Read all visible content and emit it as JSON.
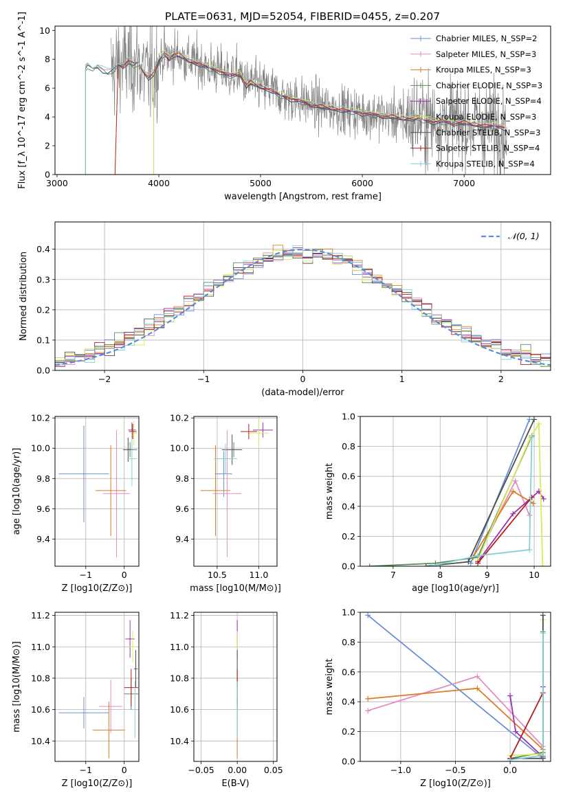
{
  "figure_title": "PLATE=0631, MJD=52054, FIBERID=0455, z=0.207",
  "colors": {
    "series": [
      "#6a8fd6",
      "#e38ac0",
      "#db7b26",
      "#5a8a5a",
      "#9b2fae",
      "#d8ec5a",
      "#4d4d4d",
      "#b71c1c",
      "#84cfd6"
    ],
    "data_spectrum": "#808080",
    "grid": "#b0b0b0",
    "normal_curve": "#5b8bd6"
  },
  "chart_data": [
    {
      "id": "spectrum",
      "type": "line",
      "title": "PLATE=0631, MJD=52054, FIBERID=0455, z=0.207",
      "xlabel": "wavelength [Angstrom, rest frame]",
      "ylabel": "Flux [f_λ 10^-17 erg cm^-2 s^-1 A^-1]",
      "xlim": [
        2980,
        7850
      ],
      "ylim": [
        0,
        10.3
      ],
      "xticks": [
        3000,
        4000,
        5000,
        6000,
        7000
      ],
      "yticks": [
        0,
        2,
        4,
        6,
        8,
        10
      ],
      "grid": false,
      "legend_position": "upper right",
      "legend": [
        "Chabrier MILES, N_SSP=2",
        "Salpeter MILES, N_SSP=3",
        "Kroupa MILES, N_SSP=3",
        "Chabrier ELODIE, N_SSP=3",
        "Salpeter ELODIE, N_SSP=4",
        "Kroupa ELODIE, N_SSP=3",
        "Chabrier STELIB, N_SSP=3",
        "Salpeter STELIB, N_SSP=4",
        "Kroupa STELIB, N_SSP=4"
      ],
      "model_continuum": {
        "x": [
          3280,
          3300,
          3350,
          3400,
          3450,
          3500,
          3550,
          3600,
          3650,
          3700,
          3750,
          3800,
          3850,
          3900,
          3950,
          4000,
          4050,
          4100,
          4150,
          4200,
          4300,
          4400,
          4500,
          4600,
          4700,
          4800,
          4862,
          4900,
          5000,
          5100,
          5200,
          5300,
          5400,
          5500,
          5600,
          5700,
          5800,
          5900,
          6000,
          6100,
          6200,
          6300,
          6400,
          6500,
          6563,
          6600,
          6700,
          6800,
          6900,
          7000,
          7100,
          7200,
          7300,
          7400
        ],
        "y": [
          7.4,
          7.6,
          7.4,
          7.6,
          7.3,
          7.1,
          7.3,
          7.7,
          7.6,
          7.9,
          7.6,
          7.8,
          7.2,
          6.8,
          7.0,
          7.9,
          8.4,
          8.1,
          8.4,
          8.3,
          7.9,
          7.7,
          7.4,
          7.2,
          6.9,
          7.0,
          6.2,
          6.4,
          6.1,
          5.9,
          5.5,
          5.3,
          5.1,
          4.9,
          4.7,
          4.6,
          4.5,
          4.4,
          4.3,
          4.2,
          4.1,
          4.0,
          3.9,
          3.9,
          4.0,
          3.8,
          3.7,
          3.7,
          3.6,
          3.6,
          3.5,
          3.4,
          3.4,
          3.3
        ]
      },
      "model_starts": [
        3280,
        3280,
        3570,
        3280,
        3950,
        3950,
        3280,
        3570,
        3280
      ]
    },
    {
      "id": "residuals",
      "type": "line",
      "xlabel": "(data-model)/error",
      "ylabel": "Normed distribution",
      "xlim": [
        -2.5,
        2.5
      ],
      "ylim": [
        0,
        0.49
      ],
      "xticks": [
        -2,
        -1,
        0,
        1,
        2
      ],
      "yticks": [
        0.0,
        0.1,
        0.2,
        0.3,
        0.4
      ],
      "grid": true,
      "legend_position": "upper right",
      "legend": [
        "𝒩(0, 1)"
      ],
      "normal": {
        "mean": 0,
        "std": 1
      }
    },
    {
      "id": "age-vs-Z",
      "type": "scatter",
      "xlabel": "Z [log10(Z/Z⊙)]",
      "ylabel": "age [log10(age/yr)]",
      "xlim": [
        -1.8,
        0.38
      ],
      "ylim": [
        9.22,
        10.21
      ],
      "xticks": [
        -1,
        0
      ],
      "yticks": [
        9.4,
        9.6,
        9.8,
        10.0,
        10.2
      ],
      "grid": true,
      "points": [
        {
          "x": -1.05,
          "y": 9.83,
          "xerr": 0.65,
          "yerr": 0.32
        },
        {
          "x": -0.2,
          "y": 9.7,
          "xerr": 0.35,
          "yerr": 0.42
        },
        {
          "x": -0.35,
          "y": 9.72,
          "xerr": 0.4,
          "yerr": 0.3
        },
        {
          "x": 0.15,
          "y": 9.99,
          "xerr": 0.18,
          "yerr": 0.05
        },
        {
          "x": 0.2,
          "y": 10.12,
          "xerr": 0.1,
          "yerr": 0.05
        },
        {
          "x": 0.25,
          "y": 10.1,
          "xerr": 0.08,
          "yerr": 0.08
        },
        {
          "x": 0.1,
          "y": 9.99,
          "xerr": 0.12,
          "yerr": 0.08
        },
        {
          "x": 0.22,
          "y": 10.11,
          "xerr": 0.1,
          "yerr": 0.05
        },
        {
          "x": 0.2,
          "y": 9.93,
          "xerr": 0.12,
          "yerr": 0.18
        }
      ]
    },
    {
      "id": "age-vs-mass",
      "type": "scatter",
      "xlabel": "mass [log10(M/M⊙)]",
      "ylabel": "",
      "xlim": [
        10.22,
        11.22
      ],
      "ylim": [
        9.22,
        10.21
      ],
      "xticks": [
        10.5,
        11.0
      ],
      "yticks": [
        9.4,
        9.6,
        9.8,
        10.0,
        10.2
      ],
      "grid": true,
      "points": [
        {
          "x": 10.58,
          "y": 9.83,
          "xerr": 0.1,
          "yerr": 0.15
        },
        {
          "x": 10.62,
          "y": 9.7,
          "xerr": 0.17,
          "yerr": 0.42
        },
        {
          "x": 10.48,
          "y": 9.72,
          "xerr": 0.18,
          "yerr": 0.3
        },
        {
          "x": 10.7,
          "y": 9.99,
          "xerr": 0.1,
          "yerr": 0.05
        },
        {
          "x": 11.05,
          "y": 10.12,
          "xerr": 0.12,
          "yerr": 0.05
        },
        {
          "x": 11.0,
          "y": 10.1,
          "xerr": 0.12,
          "yerr": 0.1
        },
        {
          "x": 10.68,
          "y": 9.99,
          "xerr": 0.12,
          "yerr": 0.1
        },
        {
          "x": 10.88,
          "y": 10.11,
          "xerr": 0.1,
          "yerr": 0.05
        },
        {
          "x": 10.6,
          "y": 9.93,
          "xerr": 0.14,
          "yerr": 0.1
        }
      ]
    },
    {
      "id": "massweight-vs-age",
      "type": "line",
      "xlabel": "age [log10(age/yr)]",
      "ylabel": "mass weight",
      "xlim": [
        6.3,
        10.35
      ],
      "ylim": [
        0,
        1.0
      ],
      "xticks": [
        7,
        8,
        9,
        10
      ],
      "yticks": [
        0.0,
        0.2,
        0.4,
        0.6,
        0.8,
        1.0
      ],
      "grid": true,
      "series": [
        {
          "x": [
            8.65,
            9.9
          ],
          "y": [
            0.02,
            0.98
          ]
        },
        {
          "x": [
            8.8,
            9.6,
            9.9
          ],
          "y": [
            0.06,
            0.57,
            0.34
          ]
        },
        {
          "x": [
            8.7,
            9.55,
            9.98
          ],
          "y": [
            0.06,
            0.5,
            0.42
          ]
        },
        {
          "x": [
            6.5,
            7.9,
            8.8,
            9.95
          ],
          "y": [
            0.0,
            0.02,
            0.06,
            0.87
          ]
        },
        {
          "x": [
            8.8,
            9.55,
            10.1,
            10.2
          ],
          "y": [
            0.03,
            0.35,
            0.5,
            0.45
          ]
        },
        {
          "x": [
            8.8,
            9.92,
            10.1,
            10.18
          ],
          "y": [
            0.04,
            0.86,
            0.95,
            0.0
          ]
        },
        {
          "x": [
            7.7,
            8.6,
            10.0
          ],
          "y": [
            0.0,
            0.03,
            0.98
          ]
        },
        {
          "x": [
            8.8,
            9.95
          ],
          "y": [
            0.02,
            0.46
          ]
        },
        {
          "x": [
            7.8,
            8.8,
            9.9,
            9.95
          ],
          "y": [
            0.0,
            0.07,
            0.11,
            0.86
          ]
        }
      ]
    },
    {
      "id": "mass-vs-Z",
      "type": "scatter",
      "xlabel": "Z [log10(Z/Z⊙)]",
      "ylabel": "mass [log10(M/M⊙)]",
      "xlim": [
        -1.8,
        0.38
      ],
      "ylim": [
        10.27,
        11.22
      ],
      "xticks": [
        -1,
        0
      ],
      "yticks": [
        10.4,
        10.6,
        10.8,
        11.0,
        11.2
      ],
      "grid": true,
      "points": [
        {
          "x": -1.05,
          "y": 10.58,
          "xerr": 0.65,
          "yerr": 0.1
        },
        {
          "x": -0.35,
          "y": 10.62,
          "xerr": 0.3,
          "yerr": 0.17
        },
        {
          "x": -0.4,
          "y": 10.47,
          "xerr": 0.42,
          "yerr": 0.18
        },
        {
          "x": 0.18,
          "y": 10.7,
          "xerr": 0.18,
          "yerr": 0.1
        },
        {
          "x": 0.15,
          "y": 11.05,
          "xerr": 0.12,
          "yerr": 0.12
        },
        {
          "x": 0.22,
          "y": 11.0,
          "xerr": 0.1,
          "yerr": 0.1
        },
        {
          "x": 0.3,
          "y": 10.86,
          "xerr": 0.05,
          "yerr": 0.12
        },
        {
          "x": 0.18,
          "y": 10.74,
          "xerr": 0.18,
          "yerr": 0.12
        },
        {
          "x": 0.28,
          "y": 10.6,
          "xerr": 0.08,
          "yerr": 0.18
        }
      ]
    },
    {
      "id": "mass-vs-EBV",
      "type": "scatter",
      "xlabel": "E(B-V)",
      "ylabel": "",
      "xlim": [
        -0.06,
        0.055
      ],
      "ylim": [
        10.27,
        11.22
      ],
      "xticks": [
        -0.05,
        0.0,
        0.05
      ],
      "yticks": [
        10.4,
        10.6,
        10.8,
        11.0,
        11.2
      ],
      "grid": true,
      "points": [
        {
          "x": 0.0,
          "y": 10.58,
          "xerr": 0,
          "yerr": 0.1
        },
        {
          "x": 0.0,
          "y": 10.62,
          "xerr": 0,
          "yerr": 0.17
        },
        {
          "x": 0.0,
          "y": 10.47,
          "xerr": 0,
          "yerr": 0.18
        },
        {
          "x": 0.0,
          "y": 10.7,
          "xerr": 0,
          "yerr": 0.1
        },
        {
          "x": 0.0,
          "y": 11.05,
          "xerr": 0,
          "yerr": 0.12
        },
        {
          "x": 0.0,
          "y": 11.0,
          "xerr": 0,
          "yerr": 0.1
        },
        {
          "x": 0.0,
          "y": 10.86,
          "xerr": 0,
          "yerr": 0.12
        },
        {
          "x": 0.0,
          "y": 10.74,
          "xerr": 0,
          "yerr": 0.12
        },
        {
          "x": 0.0,
          "y": 10.6,
          "xerr": 0,
          "yerr": 0.18
        }
      ]
    },
    {
      "id": "massweight-vs-Z",
      "type": "line",
      "xlabel": "Z [log10(Z/Z⊙)]",
      "ylabel": "mass weight",
      "xlim": [
        -1.37,
        0.37
      ],
      "ylim": [
        0,
        1.0
      ],
      "xticks": [
        -1.0,
        -0.5,
        0.0
      ],
      "yticks": [
        0.0,
        0.2,
        0.4,
        0.6,
        0.8,
        1.0
      ],
      "grid": true,
      "series": [
        {
          "x": [
            -1.3,
            0.3
          ],
          "y": [
            0.98,
            0.02
          ]
        },
        {
          "x": [
            -1.3,
            -0.3,
            0.3
          ],
          "y": [
            0.34,
            0.57,
            0.1
          ]
        },
        {
          "x": [
            -1.3,
            -0.3,
            0.3
          ],
          "y": [
            0.42,
            0.49,
            0.08
          ]
        },
        {
          "x": [
            0.0,
            0.3,
            0.3
          ],
          "y": [
            0.02,
            0.06,
            0.87
          ]
        },
        {
          "x": [
            0.0,
            0.05,
            0.3,
            0.3
          ],
          "y": [
            0.44,
            0.2,
            0.03,
            0.5
          ]
        },
        {
          "x": [
            0.0,
            0.3,
            0.3
          ],
          "y": [
            0.04,
            0.05,
            0.95
          ]
        },
        {
          "x": [
            0.0,
            0.3,
            0.3
          ],
          "y": [
            0.02,
            0.02,
            0.98
          ]
        },
        {
          "x": [
            0.0,
            0.3
          ],
          "y": [
            0.02,
            0.46
          ]
        },
        {
          "x": [
            0.0,
            0.3,
            0.3
          ],
          "y": [
            0.01,
            0.04,
            0.86
          ]
        }
      ]
    }
  ]
}
